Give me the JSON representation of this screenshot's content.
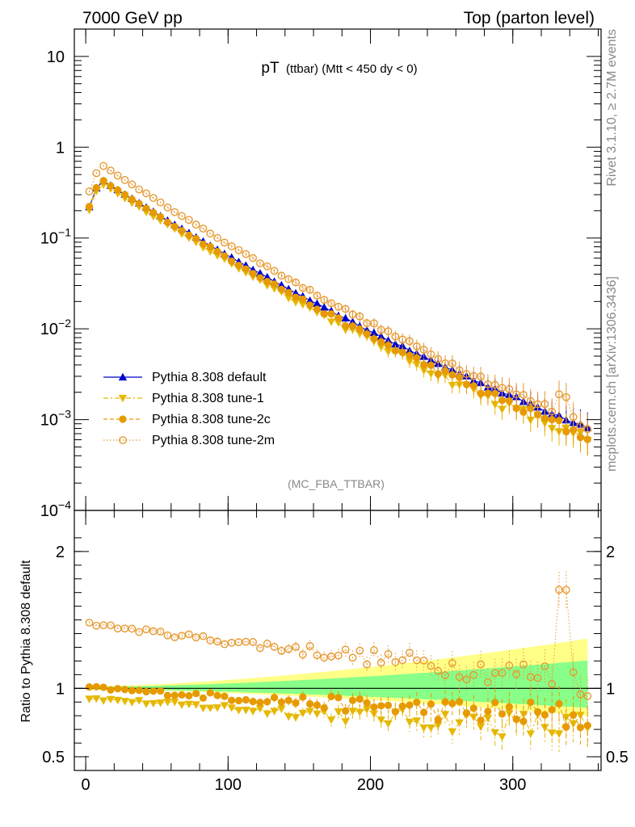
{
  "header": {
    "left": "7000 GeV pp",
    "right": "Top (parton level)"
  },
  "plot": {
    "title_main": "pT",
    "title_sub": "(ttbar) (Mtt < 450 dy < 0)",
    "analysis_label": "(MC_FBA_TTBAR)",
    "side_label_top": "Rivet 3.1.10, ≥ 2.7M events",
    "side_label_bottom": "mcplots.cern.ch [arXiv:1306.3436]",
    "ratio_ylabel": "Ratio to Pythia 8.308 default"
  },
  "colors": {
    "default": "#0000cc",
    "tune1": "#e6b800",
    "tune2c": "#e69a00",
    "tune2m": "#e69a33",
    "band_yellow": "#ffff88",
    "band_green": "#88ff88"
  },
  "chart_data": {
    "type": "scatter",
    "x_ticks": [
      "0",
      "100",
      "200",
      "300"
    ],
    "xlim": [
      -8,
      362
    ],
    "main": {
      "ylog": true,
      "ylim": [
        0.0001,
        20
      ],
      "y_ticks": [
        {
          "v": 10,
          "label": "10"
        },
        {
          "v": 1,
          "label": "1"
        },
        {
          "v": 0.1,
          "base": "10",
          "exp": "−1"
        },
        {
          "v": 0.01,
          "base": "10",
          "exp": "−2"
        },
        {
          "v": 0.001,
          "base": "10",
          "exp": "−3"
        },
        {
          "v": 0.0001,
          "base": "10",
          "exp": "−4"
        }
      ],
      "legend_position": "lower-left",
      "model": {
        "x_start": 2.5,
        "x_step": 5,
        "n_bins": 71,
        "peak_x": 10,
        "peak_y": 0.45,
        "y_at_2_5": 0.22,
        "y_at_360": 0.00075
      }
    },
    "ratio": {
      "ylim": [
        0.4,
        2.3
      ],
      "y_ticks": [
        {
          "v": 0.5,
          "label": "0.5"
        },
        {
          "v": 1,
          "label": "1"
        },
        {
          "v": 2,
          "label": "2"
        }
      ]
    },
    "series": [
      {
        "name": "Pythia 8.308 default",
        "key": "default",
        "marker": "triangle-up",
        "line": "solid",
        "ratio_start": 1.0,
        "ratio_end": 1.0
      },
      {
        "name": "Pythia 8.308 tune-1",
        "key": "tune1",
        "marker": "triangle-down",
        "line": "dashdot",
        "ratio_start": 0.93,
        "ratio_end": 0.7
      },
      {
        "name": "Pythia 8.308 tune-2c",
        "key": "tune2c",
        "marker": "circle",
        "line": "dashed",
        "ratio_start": 1.01,
        "ratio_end": 0.78
      },
      {
        "name": "Pythia 8.308 tune-2m",
        "key": "tune2m",
        "marker": "open-circle",
        "line": "dotted",
        "ratio_start": 1.48,
        "ratio_end": 1.05
      }
    ]
  }
}
